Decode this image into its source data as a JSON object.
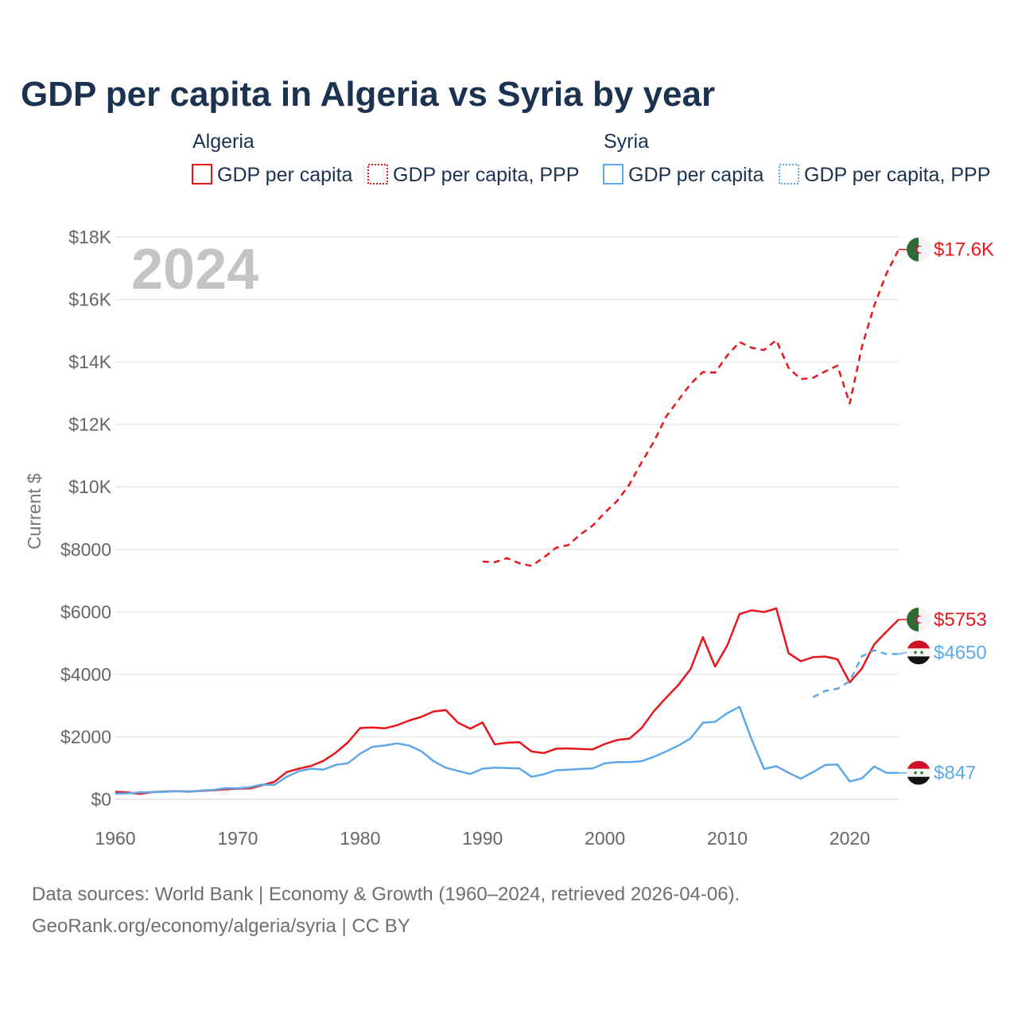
{
  "title": "GDP per capita in Algeria vs Syria by year",
  "legend": {
    "groups": [
      {
        "country": "Algeria",
        "color": "#e8161b",
        "items": [
          "GDP per capita",
          "GDP per capita, PPP"
        ]
      },
      {
        "country": "Syria",
        "color": "#5fa8e8",
        "items": [
          "GDP per capita",
          "GDP per capita, PPP"
        ]
      }
    ]
  },
  "year_label": "2024",
  "colors": {
    "algeria": "#e8161b",
    "syria": "#5fa8e8",
    "text": "#1b3250",
    "axis": "#666666"
  },
  "source_line1": "Data sources: World Bank | Economy & Growth (1960–2024, retrieved 2026-04-06).",
  "source_line2": "GeoRank.org/economy/algeria/syria | CC BY",
  "chart_data": {
    "type": "line",
    "title": "GDP per capita in Algeria vs Syria by year",
    "xlabel": "",
    "ylabel": "Current $",
    "xlim": [
      1960,
      2024
    ],
    "ylim": [
      0,
      18000
    ],
    "x_ticks": [
      1960,
      1970,
      1980,
      1990,
      2000,
      2010,
      2020
    ],
    "x_tick_labels": [
      "1960",
      "1970",
      "1980",
      "1990",
      "2000",
      "2010",
      "2020"
    ],
    "y_ticks": [
      0,
      2000,
      4000,
      6000,
      8000,
      10000,
      12000,
      14000,
      16000,
      18000
    ],
    "y_tick_labels": [
      "$0",
      "$2000",
      "$4000",
      "$6000",
      "$8000",
      "$10K",
      "$12K",
      "$14K",
      "$16K",
      "$18K"
    ],
    "grid": true,
    "series": [
      {
        "name": "Algeria GDP per capita",
        "country": "Algeria",
        "style": "solid",
        "color": "#e8161b",
        "end_label": "$5753",
        "flag": "algeria",
        "points": [
          [
            1960,
            240
          ],
          [
            1961,
            220
          ],
          [
            1962,
            170
          ],
          [
            1963,
            230
          ],
          [
            1964,
            250
          ],
          [
            1965,
            260
          ],
          [
            1966,
            250
          ],
          [
            1967,
            270
          ],
          [
            1968,
            290
          ],
          [
            1969,
            320
          ],
          [
            1970,
            340
          ],
          [
            1971,
            350
          ],
          [
            1972,
            450
          ],
          [
            1973,
            560
          ],
          [
            1974,
            870
          ],
          [
            1975,
            980
          ],
          [
            1976,
            1070
          ],
          [
            1977,
            1230
          ],
          [
            1978,
            1490
          ],
          [
            1979,
            1820
          ],
          [
            1980,
            2280
          ],
          [
            1981,
            2300
          ],
          [
            1982,
            2270
          ],
          [
            1983,
            2370
          ],
          [
            1984,
            2520
          ],
          [
            1985,
            2640
          ],
          [
            1986,
            2810
          ],
          [
            1987,
            2860
          ],
          [
            1988,
            2450
          ],
          [
            1989,
            2260
          ],
          [
            1990,
            2460
          ],
          [
            1991,
            1760
          ],
          [
            1992,
            1810
          ],
          [
            1993,
            1830
          ],
          [
            1994,
            1530
          ],
          [
            1995,
            1480
          ],
          [
            1996,
            1620
          ],
          [
            1997,
            1630
          ],
          [
            1998,
            1610
          ],
          [
            1999,
            1600
          ],
          [
            2000,
            1770
          ],
          [
            2001,
            1900
          ],
          [
            2002,
            1940
          ],
          [
            2003,
            2280
          ],
          [
            2004,
            2820
          ],
          [
            2005,
            3250
          ],
          [
            2006,
            3660
          ],
          [
            2007,
            4170
          ],
          [
            2008,
            5190
          ],
          [
            2009,
            4250
          ],
          [
            2010,
            4930
          ],
          [
            2011,
            5930
          ],
          [
            2012,
            6050
          ],
          [
            2013,
            5990
          ],
          [
            2014,
            6110
          ],
          [
            2015,
            4680
          ],
          [
            2016,
            4420
          ],
          [
            2017,
            4550
          ],
          [
            2018,
            4570
          ],
          [
            2019,
            4480
          ],
          [
            2020,
            3740
          ],
          [
            2021,
            4190
          ],
          [
            2022,
            4960
          ],
          [
            2023,
            5370
          ],
          [
            2024,
            5753
          ]
        ]
      },
      {
        "name": "Algeria GDP per capita, PPP",
        "country": "Algeria",
        "style": "dashed",
        "color": "#e8161b",
        "end_label": "$17.6K",
        "flag": "algeria",
        "points": [
          [
            1990,
            7610
          ],
          [
            1991,
            7590
          ],
          [
            1992,
            7720
          ],
          [
            1993,
            7560
          ],
          [
            1994,
            7470
          ],
          [
            1995,
            7740
          ],
          [
            1996,
            8050
          ],
          [
            1997,
            8140
          ],
          [
            1998,
            8480
          ],
          [
            1999,
            8760
          ],
          [
            2000,
            9180
          ],
          [
            2001,
            9550
          ],
          [
            2002,
            10080
          ],
          [
            2003,
            10790
          ],
          [
            2004,
            11450
          ],
          [
            2005,
            12250
          ],
          [
            2006,
            12780
          ],
          [
            2007,
            13300
          ],
          [
            2008,
            13680
          ],
          [
            2009,
            13660
          ],
          [
            2010,
            14210
          ],
          [
            2011,
            14640
          ],
          [
            2012,
            14450
          ],
          [
            2013,
            14380
          ],
          [
            2014,
            14700
          ],
          [
            2015,
            13810
          ],
          [
            2016,
            13450
          ],
          [
            2017,
            13490
          ],
          [
            2018,
            13700
          ],
          [
            2019,
            13880
          ],
          [
            2020,
            12670
          ],
          [
            2021,
            14490
          ],
          [
            2022,
            15800
          ],
          [
            2023,
            16830
          ],
          [
            2024,
            17600
          ]
        ]
      },
      {
        "name": "Syria GDP per capita",
        "country": "Syria",
        "style": "solid",
        "color": "#5fa8e8",
        "end_label": "$847",
        "flag": "syria",
        "points": [
          [
            1960,
            180
          ],
          [
            1961,
            190
          ],
          [
            1962,
            220
          ],
          [
            1963,
            230
          ],
          [
            1964,
            240
          ],
          [
            1965,
            260
          ],
          [
            1966,
            240
          ],
          [
            1967,
            280
          ],
          [
            1968,
            300
          ],
          [
            1969,
            360
          ],
          [
            1970,
            350
          ],
          [
            1971,
            390
          ],
          [
            1972,
            470
          ],
          [
            1973,
            460
          ],
          [
            1974,
            720
          ],
          [
            1975,
            900
          ],
          [
            1976,
            980
          ],
          [
            1977,
            950
          ],
          [
            1978,
            1100
          ],
          [
            1979,
            1150
          ],
          [
            1980,
            1460
          ],
          [
            1981,
            1680
          ],
          [
            1982,
            1720
          ],
          [
            1983,
            1790
          ],
          [
            1984,
            1720
          ],
          [
            1985,
            1540
          ],
          [
            1986,
            1220
          ],
          [
            1987,
            1010
          ],
          [
            1988,
            910
          ],
          [
            1989,
            810
          ],
          [
            1990,
            980
          ],
          [
            1991,
            1010
          ],
          [
            1992,
            1000
          ],
          [
            1993,
            990
          ],
          [
            1994,
            720
          ],
          [
            1995,
            800
          ],
          [
            1996,
            930
          ],
          [
            1997,
            950
          ],
          [
            1998,
            970
          ],
          [
            1999,
            990
          ],
          [
            2000,
            1150
          ],
          [
            2001,
            1190
          ],
          [
            2002,
            1190
          ],
          [
            2003,
            1220
          ],
          [
            2004,
            1360
          ],
          [
            2005,
            1530
          ],
          [
            2006,
            1720
          ],
          [
            2007,
            1950
          ],
          [
            2008,
            2450
          ],
          [
            2009,
            2480
          ],
          [
            2010,
            2760
          ],
          [
            2011,
            2960
          ],
          [
            2012,
            1900
          ],
          [
            2013,
            970
          ],
          [
            2014,
            1060
          ],
          [
            2015,
            850
          ],
          [
            2016,
            660
          ],
          [
            2017,
            870
          ],
          [
            2018,
            1100
          ],
          [
            2019,
            1110
          ],
          [
            2020,
            570
          ],
          [
            2021,
            670
          ],
          [
            2022,
            1050
          ],
          [
            2023,
            847
          ],
          [
            2024,
            847
          ]
        ]
      },
      {
        "name": "Syria GDP per capita, PPP",
        "country": "Syria",
        "style": "dashed",
        "color": "#5fa8e8",
        "end_label": "$4650",
        "flag": "syria",
        "points": [
          [
            2017,
            3270
          ],
          [
            2018,
            3470
          ],
          [
            2019,
            3540
          ],
          [
            2020,
            3780
          ],
          [
            2021,
            4580
          ],
          [
            2022,
            4770
          ],
          [
            2023,
            4650
          ],
          [
            2024,
            4650
          ]
        ]
      }
    ]
  }
}
